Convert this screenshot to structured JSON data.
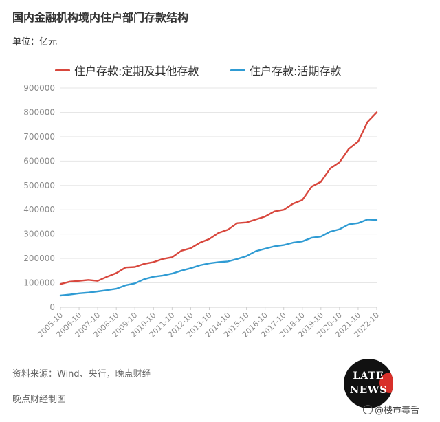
{
  "title": "国内金融机构境内住户部门存款结构",
  "unit": "单位：亿元",
  "source": "资料来源：Wind、央行，晚点财经",
  "maker": "晚点财经制图",
  "logo": {
    "line1": "LATE",
    "line2": "NEWS"
  },
  "watermark": "@楼市毒舌",
  "colors": {
    "series_time": "#d8473d",
    "series_demand": "#2f9bd3",
    "grid": "#e6e6e6",
    "axis_text": "#8a8a8a"
  },
  "chart_data": {
    "type": "line",
    "xlabel": "",
    "ylabel": "",
    "ylim": [
      0,
      900000
    ],
    "yticks": [
      "0",
      "100000",
      "200000",
      "300000",
      "400000",
      "500000",
      "600000",
      "700000",
      "800000",
      "900000"
    ],
    "xticks": [
      "2005-10",
      "2006-10",
      "2007-10",
      "2008-10",
      "2009-10",
      "2010-10",
      "2011-10",
      "2012-10",
      "2013-10",
      "2014-10",
      "2015-10",
      "2016-10",
      "2017-10",
      "2018-10",
      "2019-10",
      "2020-10",
      "2021-10",
      "2022-10"
    ],
    "grid": true,
    "legend_position": "top",
    "x": [
      "2005-10",
      "2006-04",
      "2006-10",
      "2007-04",
      "2007-10",
      "2008-04",
      "2008-10",
      "2009-04",
      "2009-10",
      "2010-04",
      "2010-10",
      "2011-04",
      "2011-10",
      "2012-04",
      "2012-10",
      "2013-04",
      "2013-10",
      "2014-04",
      "2014-10",
      "2015-04",
      "2015-10",
      "2016-04",
      "2016-10",
      "2017-04",
      "2017-10",
      "2018-04",
      "2018-10",
      "2019-04",
      "2019-10",
      "2020-04",
      "2020-10",
      "2021-04",
      "2021-10",
      "2022-04",
      "2022-10"
    ],
    "series": [
      {
        "name": "住户存款:定期及其他存款",
        "values": [
          95000,
          105000,
          108000,
          112000,
          108000,
          125000,
          140000,
          163000,
          165000,
          178000,
          185000,
          198000,
          205000,
          232000,
          242000,
          265000,
          280000,
          305000,
          318000,
          345000,
          348000,
          360000,
          372000,
          393000,
          400000,
          425000,
          440000,
          495000,
          515000,
          570000,
          595000,
          650000,
          680000,
          760000,
          800000
        ]
      },
      {
        "name": "住户存款:活期存款",
        "values": [
          48000,
          52000,
          57000,
          60000,
          65000,
          70000,
          76000,
          90000,
          98000,
          115000,
          125000,
          130000,
          138000,
          150000,
          160000,
          172000,
          180000,
          185000,
          188000,
          198000,
          210000,
          230000,
          240000,
          250000,
          255000,
          265000,
          270000,
          285000,
          290000,
          310000,
          320000,
          340000,
          345000,
          360000,
          358000
        ]
      }
    ]
  }
}
